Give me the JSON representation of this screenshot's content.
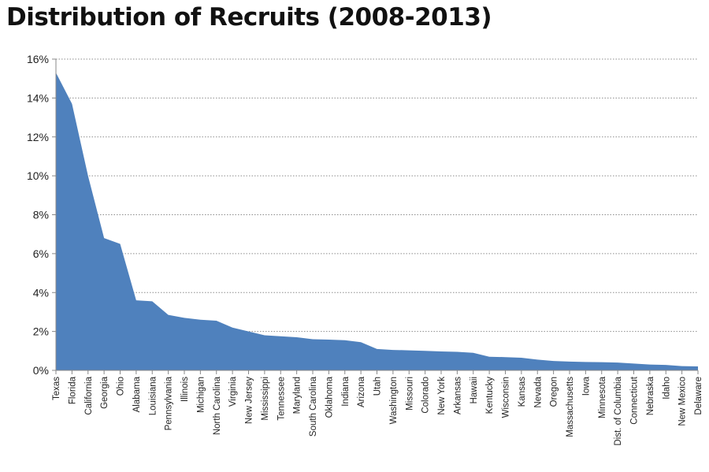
{
  "chart_data": {
    "type": "area",
    "title": "Distribution of Recruits (2008-2013)",
    "xlabel": "",
    "ylabel": "",
    "ylim": [
      0,
      16
    ],
    "yticks": [
      0,
      2,
      4,
      6,
      8,
      10,
      12,
      14,
      16
    ],
    "ytick_labels": [
      "0%",
      "2%",
      "4%",
      "6%",
      "8%",
      "10%",
      "12%",
      "14%",
      "16%"
    ],
    "grid": true,
    "legend": "none",
    "color": "#4F81BD",
    "categories": [
      "Texas",
      "Florida",
      "California",
      "Georgia",
      "Ohio",
      "Alabama",
      "Louisiana",
      "Pennsylvania",
      "Illinois",
      "Michigan",
      "North Carolina",
      "Virginia",
      "New Jersey",
      "Mississippi",
      "Tennessee",
      "Maryland",
      "South Carolina",
      "Oklahoma",
      "Indiana",
      "Arizona",
      "Utah",
      "Washington",
      "Missouri",
      "Colorado",
      "New York",
      "Arkansas",
      "Hawaii",
      "Kentucky",
      "Wisconsin",
      "Kansas",
      "Nevada",
      "Oregon",
      "Massachusetts",
      "Iowa",
      "Minnesota",
      "Dist. of Columbia",
      "Connecticut",
      "Nebraska",
      "Idaho",
      "New Mexico",
      "Delaware"
    ],
    "values": [
      15.3,
      13.7,
      10.0,
      6.8,
      6.5,
      3.6,
      3.55,
      2.85,
      2.7,
      2.6,
      2.55,
      2.2,
      2.0,
      1.8,
      1.75,
      1.7,
      1.6,
      1.58,
      1.55,
      1.45,
      1.1,
      1.05,
      1.03,
      1.0,
      0.97,
      0.95,
      0.9,
      0.7,
      0.68,
      0.65,
      0.55,
      0.48,
      0.45,
      0.43,
      0.42,
      0.4,
      0.35,
      0.3,
      0.28,
      0.22,
      0.2
    ]
  }
}
